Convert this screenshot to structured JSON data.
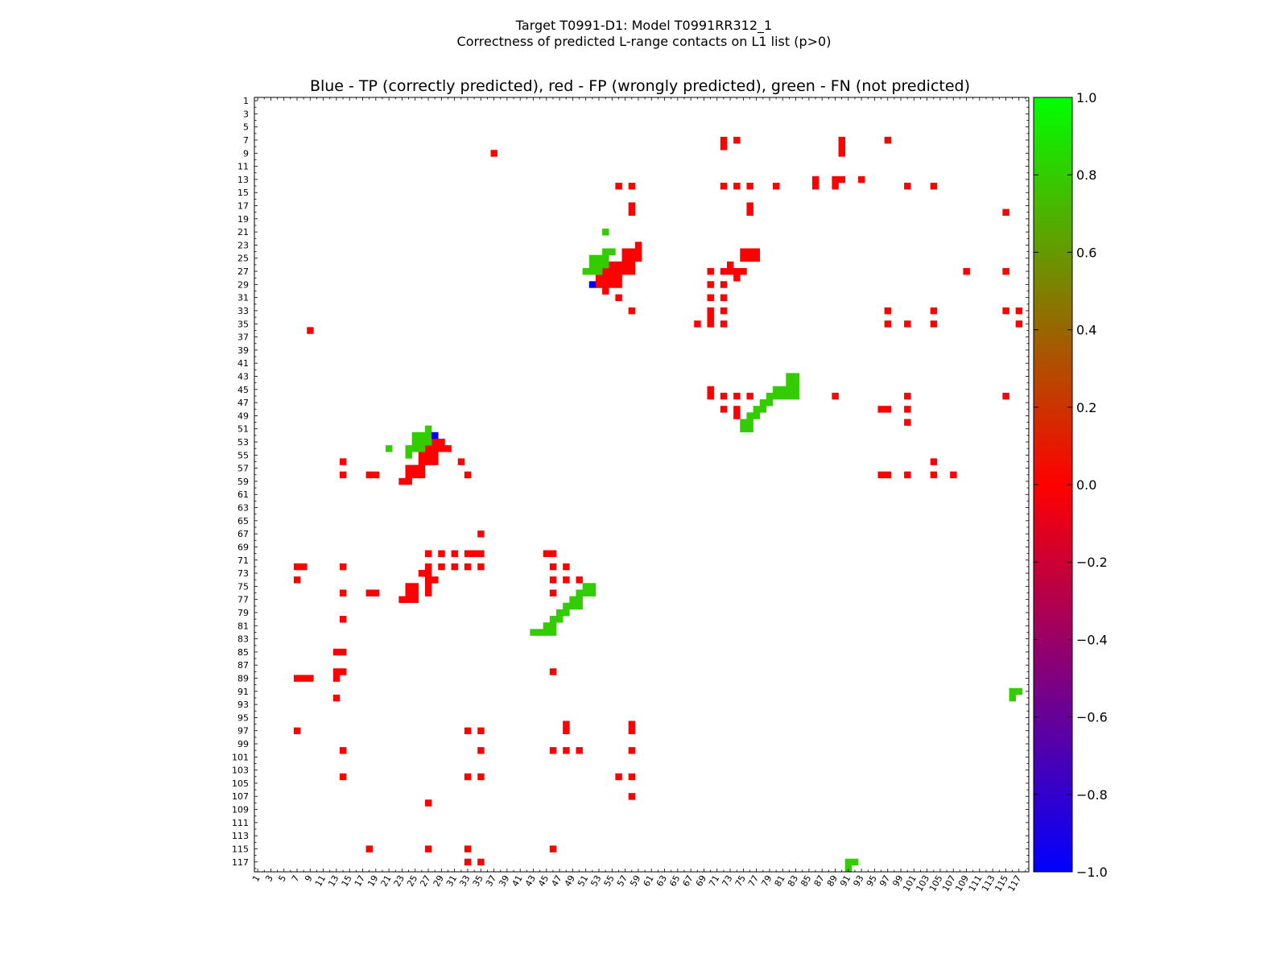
{
  "figure": {
    "title_line1": "Target T0991-D1: Model T0991RR312_1",
    "title_line2": "Correctness of predicted L-range contacts on L1 list (p>0)"
  },
  "colors": {
    "tp": "#0000ff",
    "fp": "#ff0000",
    "fn": "#33cc00",
    "colormap": [
      "#0000ff",
      "#ff0000",
      "#00ff00"
    ]
  },
  "chart_data": {
    "type": "heatmap",
    "title": "Blue - TP (correctly predicted), red - FP (wrongly predicted), green - FN (not predicted)",
    "xlabel": "",
    "ylabel": "",
    "xlim": [
      1,
      118
    ],
    "ylim": [
      1,
      118
    ],
    "y_inverted": true,
    "x_tick_labels": [
      "1",
      "3",
      "5",
      "7",
      "9",
      "11",
      "13",
      "15",
      "17",
      "19",
      "21",
      "23",
      "25",
      "27",
      "29",
      "31",
      "33",
      "35",
      "37",
      "39",
      "41",
      "43",
      "45",
      "47",
      "49",
      "51",
      "53",
      "55",
      "57",
      "59",
      "61",
      "63",
      "65",
      "67",
      "69",
      "71",
      "73",
      "75",
      "77",
      "79",
      "81",
      "83",
      "85",
      "87",
      "89",
      "91",
      "93",
      "95",
      "97",
      "99",
      "101",
      "103",
      "105",
      "107",
      "109",
      "111",
      "113",
      "115",
      "117"
    ],
    "y_tick_labels": [
      "1",
      "3",
      "5",
      "7",
      "9",
      "11",
      "13",
      "15",
      "17",
      "19",
      "21",
      "23",
      "25",
      "27",
      "29",
      "31",
      "33",
      "35",
      "37",
      "39",
      "41",
      "43",
      "45",
      "47",
      "49",
      "51",
      "53",
      "55",
      "57",
      "59",
      "61",
      "63",
      "65",
      "67",
      "69",
      "71",
      "73",
      "75",
      "77",
      "79",
      "81",
      "83",
      "85",
      "87",
      "89",
      "91",
      "93",
      "95",
      "97",
      "99",
      "101",
      "103",
      "105",
      "107",
      "109",
      "111",
      "113",
      "115",
      "117"
    ],
    "colorbar": {
      "min": -1.0,
      "max": 1.0,
      "ticks": [
        "1.0",
        "0.8",
        "0.6",
        "0.4",
        "0.2",
        "0.0",
        "−0.2",
        "−0.4",
        "−0.6",
        "−0.8",
        "−1.0"
      ]
    },
    "tp_cells": [
      [
        52,
        29
      ],
      [
        28,
        52
      ]
    ],
    "fn_cells": [
      [
        54,
        21
      ],
      [
        54,
        24
      ],
      [
        55,
        24
      ],
      [
        52,
        25
      ],
      [
        53,
        25
      ],
      [
        54,
        25
      ],
      [
        52,
        26
      ],
      [
        53,
        26
      ],
      [
        54,
        26
      ],
      [
        51,
        27
      ],
      [
        52,
        27
      ],
      [
        53,
        27
      ],
      [
        82,
        43
      ],
      [
        83,
        43
      ],
      [
        82,
        44
      ],
      [
        83,
        44
      ],
      [
        80,
        45
      ],
      [
        81,
        45
      ],
      [
        82,
        45
      ],
      [
        83,
        45
      ],
      [
        79,
        46
      ],
      [
        80,
        46
      ],
      [
        81,
        46
      ],
      [
        82,
        46
      ],
      [
        83,
        46
      ],
      [
        78,
        47
      ],
      [
        79,
        47
      ],
      [
        77,
        48
      ],
      [
        78,
        48
      ],
      [
        76,
        49
      ],
      [
        77,
        49
      ],
      [
        75,
        50
      ],
      [
        76,
        50
      ],
      [
        75,
        51
      ],
      [
        76,
        51
      ],
      [
        27,
        51
      ],
      [
        25,
        52
      ],
      [
        26,
        52
      ],
      [
        27,
        52
      ],
      [
        25,
        53
      ],
      [
        26,
        53
      ],
      [
        27,
        53
      ],
      [
        21,
        54
      ],
      [
        24,
        54
      ],
      [
        25,
        54
      ],
      [
        26,
        54
      ],
      [
        24,
        55
      ],
      [
        51,
        75
      ],
      [
        52,
        75
      ],
      [
        50,
        76
      ],
      [
        51,
        76
      ],
      [
        52,
        76
      ],
      [
        49,
        77
      ],
      [
        50,
        77
      ],
      [
        48,
        78
      ],
      [
        49,
        78
      ],
      [
        50,
        78
      ],
      [
        47,
        79
      ],
      [
        48,
        79
      ],
      [
        46,
        80
      ],
      [
        47,
        80
      ],
      [
        45,
        81
      ],
      [
        46,
        81
      ],
      [
        43,
        82
      ],
      [
        44,
        82
      ],
      [
        45,
        82
      ],
      [
        46,
        82
      ],
      [
        116,
        91
      ],
      [
        117,
        91
      ],
      [
        116,
        92
      ],
      [
        91,
        117
      ],
      [
        92,
        117
      ],
      [
        91,
        118
      ]
    ],
    "fp_cells": [
      [
        72,
        7
      ],
      [
        74,
        7
      ],
      [
        90,
        7
      ],
      [
        97,
        7
      ],
      [
        72,
        8
      ],
      [
        90,
        8
      ],
      [
        37,
        9
      ],
      [
        90,
        9
      ],
      [
        86,
        13
      ],
      [
        89,
        13
      ],
      [
        90,
        13
      ],
      [
        93,
        13
      ],
      [
        56,
        14
      ],
      [
        58,
        14
      ],
      [
        72,
        14
      ],
      [
        74,
        14
      ],
      [
        76,
        14
      ],
      [
        80,
        14
      ],
      [
        86,
        14
      ],
      [
        89,
        14
      ],
      [
        100,
        14
      ],
      [
        104,
        14
      ],
      [
        58,
        17
      ],
      [
        76,
        17
      ],
      [
        58,
        18
      ],
      [
        76,
        18
      ],
      [
        115,
        18
      ],
      [
        59,
        23
      ],
      [
        57,
        24
      ],
      [
        58,
        24
      ],
      [
        59,
        24
      ],
      [
        75,
        24
      ],
      [
        76,
        24
      ],
      [
        77,
        24
      ],
      [
        57,
        25
      ],
      [
        58,
        25
      ],
      [
        59,
        25
      ],
      [
        75,
        25
      ],
      [
        76,
        25
      ],
      [
        77,
        25
      ],
      [
        55,
        26
      ],
      [
        56,
        26
      ],
      [
        57,
        26
      ],
      [
        58,
        26
      ],
      [
        73,
        26
      ],
      [
        54,
        27
      ],
      [
        55,
        27
      ],
      [
        56,
        27
      ],
      [
        57,
        27
      ],
      [
        58,
        27
      ],
      [
        70,
        27
      ],
      [
        72,
        27
      ],
      [
        73,
        27
      ],
      [
        74,
        27
      ],
      [
        75,
        27
      ],
      [
        109,
        27
      ],
      [
        115,
        27
      ],
      [
        53,
        28
      ],
      [
        54,
        28
      ],
      [
        55,
        28
      ],
      [
        56,
        28
      ],
      [
        74,
        28
      ],
      [
        53,
        29
      ],
      [
        54,
        29
      ],
      [
        55,
        29
      ],
      [
        56,
        29
      ],
      [
        70,
        29
      ],
      [
        72,
        29
      ],
      [
        54,
        30
      ],
      [
        70,
        31
      ],
      [
        72,
        31
      ],
      [
        56,
        31
      ],
      [
        58,
        33
      ],
      [
        70,
        33
      ],
      [
        72,
        33
      ],
      [
        97,
        33
      ],
      [
        104,
        33
      ],
      [
        115,
        33
      ],
      [
        117,
        33
      ],
      [
        68,
        35
      ],
      [
        70,
        35
      ],
      [
        72,
        35
      ],
      [
        97,
        35
      ],
      [
        100,
        35
      ],
      [
        104,
        35
      ],
      [
        117,
        35
      ],
      [
        70,
        34
      ],
      [
        9,
        36
      ],
      [
        70,
        45
      ],
      [
        70,
        46
      ],
      [
        72,
        46
      ],
      [
        74,
        46
      ],
      [
        76,
        46
      ],
      [
        89,
        46
      ],
      [
        100,
        46
      ],
      [
        115,
        46
      ],
      [
        72,
        48
      ],
      [
        74,
        48
      ],
      [
        96,
        48
      ],
      [
        97,
        48
      ],
      [
        100,
        48
      ],
      [
        74,
        49
      ],
      [
        100,
        50
      ],
      [
        28,
        53
      ],
      [
        29,
        53
      ],
      [
        27,
        54
      ],
      [
        28,
        54
      ],
      [
        29,
        54
      ],
      [
        30,
        54
      ],
      [
        26,
        55
      ],
      [
        27,
        55
      ],
      [
        28,
        55
      ],
      [
        26,
        56
      ],
      [
        27,
        56
      ],
      [
        28,
        56
      ],
      [
        24,
        57
      ],
      [
        25,
        57
      ],
      [
        26,
        57
      ],
      [
        24,
        58
      ],
      [
        25,
        58
      ],
      [
        26,
        58
      ],
      [
        23,
        59
      ],
      [
        24,
        59
      ],
      [
        32,
        56
      ],
      [
        14,
        56
      ],
      [
        104,
        56
      ],
      [
        14,
        58
      ],
      [
        18,
        58
      ],
      [
        19,
        58
      ],
      [
        33,
        58
      ],
      [
        96,
        58
      ],
      [
        97,
        58
      ],
      [
        100,
        58
      ],
      [
        104,
        58
      ],
      [
        107,
        58
      ],
      [
        35,
        67
      ],
      [
        27,
        70
      ],
      [
        29,
        70
      ],
      [
        31,
        70
      ],
      [
        33,
        70
      ],
      [
        34,
        70
      ],
      [
        35,
        70
      ],
      [
        45,
        70
      ],
      [
        46,
        70
      ],
      [
        7,
        72
      ],
      [
        8,
        72
      ],
      [
        14,
        72
      ],
      [
        27,
        72
      ],
      [
        29,
        72
      ],
      [
        31,
        72
      ],
      [
        33,
        72
      ],
      [
        35,
        72
      ],
      [
        46,
        72
      ],
      [
        48,
        72
      ],
      [
        26,
        73
      ],
      [
        27,
        73
      ],
      [
        7,
        74
      ],
      [
        27,
        74
      ],
      [
        28,
        74
      ],
      [
        46,
        74
      ],
      [
        48,
        74
      ],
      [
        50,
        74
      ],
      [
        24,
        75
      ],
      [
        25,
        75
      ],
      [
        27,
        75
      ],
      [
        14,
        76
      ],
      [
        18,
        76
      ],
      [
        19,
        76
      ],
      [
        24,
        76
      ],
      [
        25,
        76
      ],
      [
        27,
        76
      ],
      [
        46,
        76
      ],
      [
        23,
        77
      ],
      [
        24,
        77
      ],
      [
        25,
        77
      ],
      [
        14,
        80
      ],
      [
        13,
        85
      ],
      [
        14,
        85
      ],
      [
        13,
        88
      ],
      [
        14,
        88
      ],
      [
        46,
        88
      ],
      [
        7,
        89
      ],
      [
        8,
        89
      ],
      [
        9,
        89
      ],
      [
        13,
        89
      ],
      [
        13,
        92
      ],
      [
        7,
        97
      ],
      [
        33,
        97
      ],
      [
        35,
        97
      ],
      [
        48,
        96
      ],
      [
        48,
        97
      ],
      [
        58,
        96
      ],
      [
        58,
        97
      ],
      [
        14,
        100
      ],
      [
        35,
        100
      ],
      [
        46,
        100
      ],
      [
        48,
        100
      ],
      [
        50,
        100
      ],
      [
        58,
        100
      ],
      [
        14,
        104
      ],
      [
        33,
        104
      ],
      [
        35,
        104
      ],
      [
        56,
        104
      ],
      [
        58,
        104
      ],
      [
        58,
        107
      ],
      [
        27,
        108
      ],
      [
        18,
        115
      ],
      [
        27,
        115
      ],
      [
        33,
        115
      ],
      [
        46,
        115
      ],
      [
        33,
        117
      ],
      [
        35,
        117
      ]
    ]
  }
}
